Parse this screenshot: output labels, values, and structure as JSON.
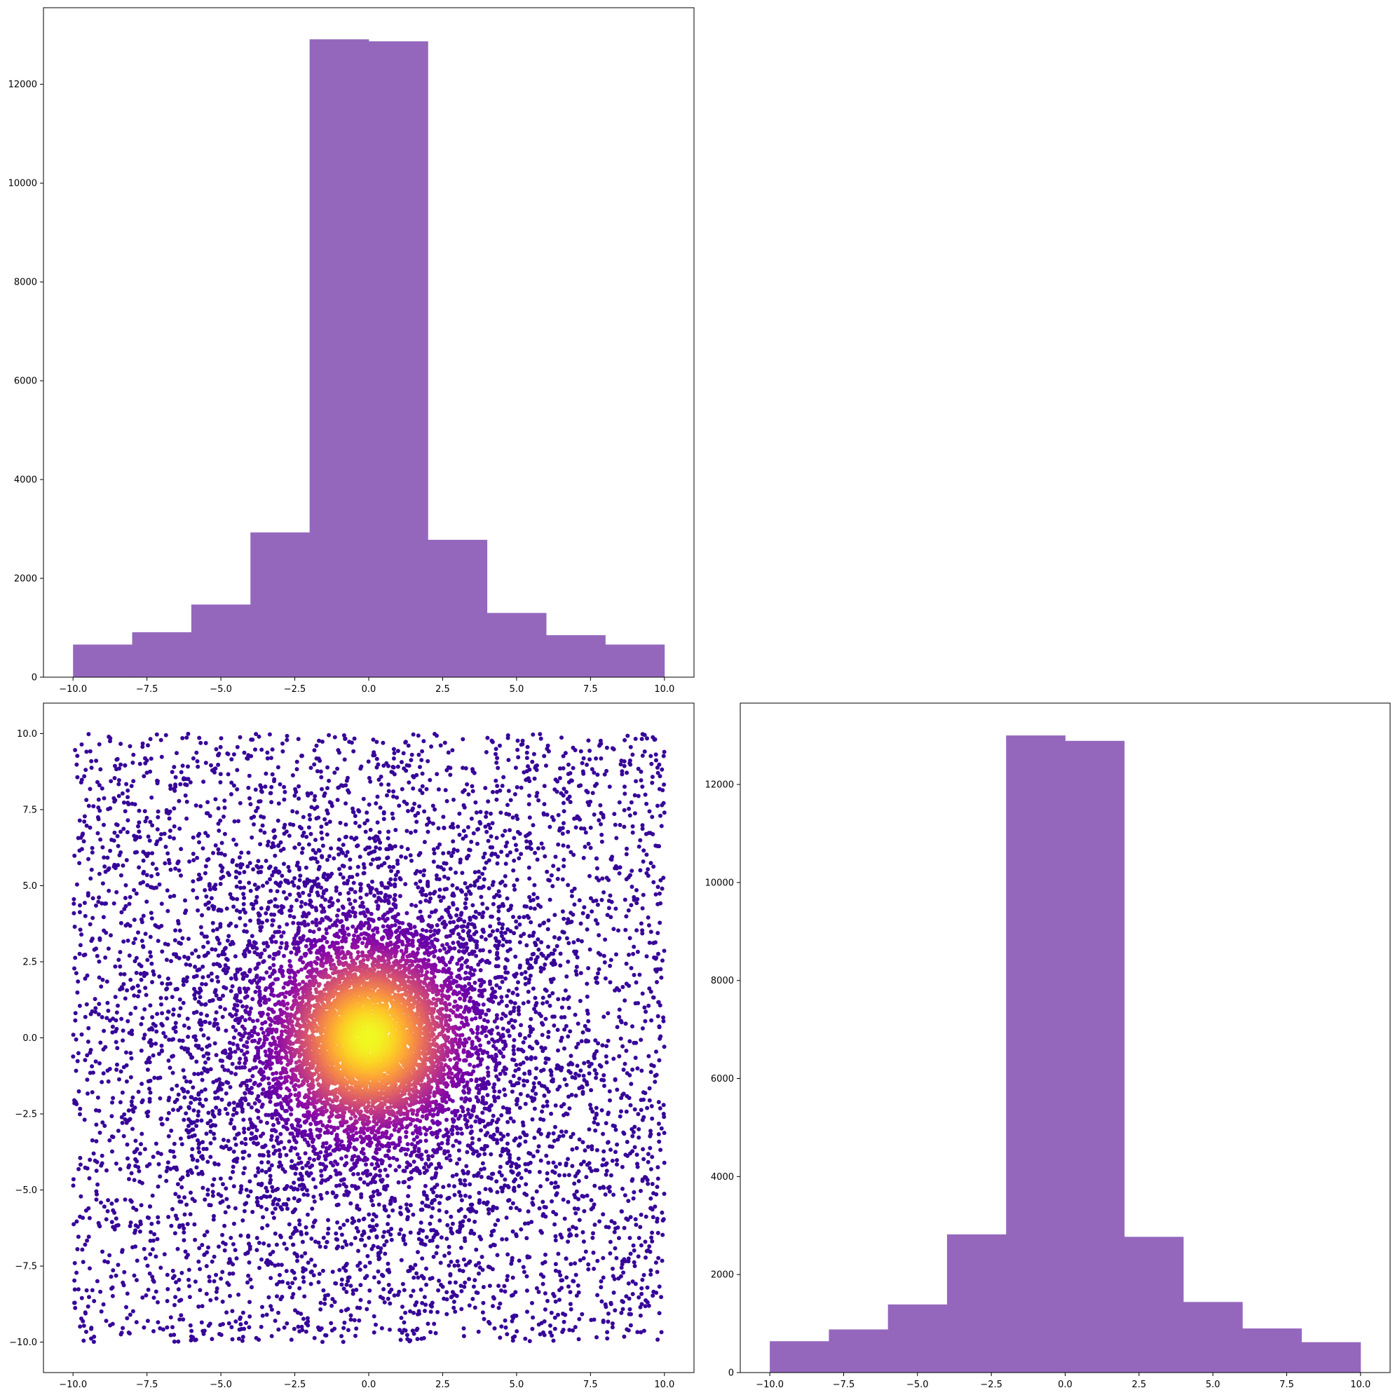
{
  "colors": {
    "hist_fill": "#9467bd",
    "scatter_colormap": "plasma",
    "scatter_low": "#2a0593",
    "scatter_high": "#f0f921"
  },
  "chart_data": [
    {
      "id": "hist_top",
      "type": "bar",
      "title": "",
      "xlabel": "",
      "ylabel": "",
      "bin_edges": [
        -10,
        -8,
        -6,
        -4,
        -2,
        0,
        2,
        4,
        6,
        8,
        10
      ],
      "values": [
        660,
        910,
        1470,
        2930,
        12910,
        12870,
        2780,
        1300,
        850,
        660
      ],
      "xlim": [
        -11,
        11
      ],
      "ylim": [
        0,
        13550
      ],
      "xticks": [
        -10,
        -7.5,
        -5,
        -2.5,
        0,
        2.5,
        5,
        7.5,
        10
      ],
      "xtick_labels": [
        "−10.0",
        "−7.5",
        "−5.0",
        "−2.5",
        "0.0",
        "2.5",
        "5.0",
        "7.5",
        "10.0"
      ],
      "yticks": [
        0,
        2000,
        4000,
        6000,
        8000,
        10000,
        12000
      ],
      "ytick_labels": [
        "0",
        "2000",
        "4000",
        "6000",
        "8000",
        "10000",
        "12000"
      ],
      "grid": false
    },
    {
      "id": "scatter",
      "type": "scatter",
      "title": "",
      "xlabel": "",
      "ylabel": "",
      "point_count": 12000,
      "x_range": [
        -10,
        10
      ],
      "y_range": [
        -10,
        10
      ],
      "distribution": "dense cluster centered at (0, 0) spreading to a uniform background over the square",
      "color_by": "local point density (plasma colormap, dark purple to yellow)",
      "xlim": [
        -11,
        11
      ],
      "ylim": [
        -11,
        11
      ],
      "xticks": [
        -10,
        -7.5,
        -5,
        -2.5,
        0,
        2.5,
        5,
        7.5,
        10
      ],
      "xtick_labels": [
        "−10.0",
        "−7.5",
        "−5.0",
        "−2.5",
        "0.0",
        "2.5",
        "5.0",
        "7.5",
        "10.0"
      ],
      "yticks": [
        -10,
        -7.5,
        -5,
        -2.5,
        0,
        2.5,
        5,
        7.5,
        10
      ],
      "ytick_labels": [
        "−10.0",
        "−7.5",
        "−5.0",
        "−2.5",
        "0.0",
        "2.5",
        "5.0",
        "7.5",
        "10.0"
      ],
      "grid": false
    },
    {
      "id": "hist_right",
      "type": "bar",
      "title": "",
      "xlabel": "",
      "ylabel": "",
      "bin_edges": [
        -10,
        -8,
        -6,
        -4,
        -2,
        0,
        2,
        4,
        6,
        8,
        10
      ],
      "values": [
        640,
        880,
        1390,
        2820,
        13000,
        12890,
        2770,
        1440,
        900,
        620
      ],
      "xlim": [
        -11,
        11
      ],
      "ylim": [
        0,
        13660
      ],
      "xticks": [
        -10,
        -7.5,
        -5,
        -2.5,
        0,
        2.5,
        5,
        7.5,
        10
      ],
      "xtick_labels": [
        "−10.0",
        "−7.5",
        "−5.0",
        "−2.5",
        "0.0",
        "2.5",
        "5.0",
        "7.5",
        "10.0"
      ],
      "yticks": [
        0,
        2000,
        4000,
        6000,
        8000,
        10000,
        12000
      ],
      "ytick_labels": [
        "0",
        "2000",
        "4000",
        "6000",
        "8000",
        "10000",
        "12000"
      ],
      "grid": false
    }
  ]
}
